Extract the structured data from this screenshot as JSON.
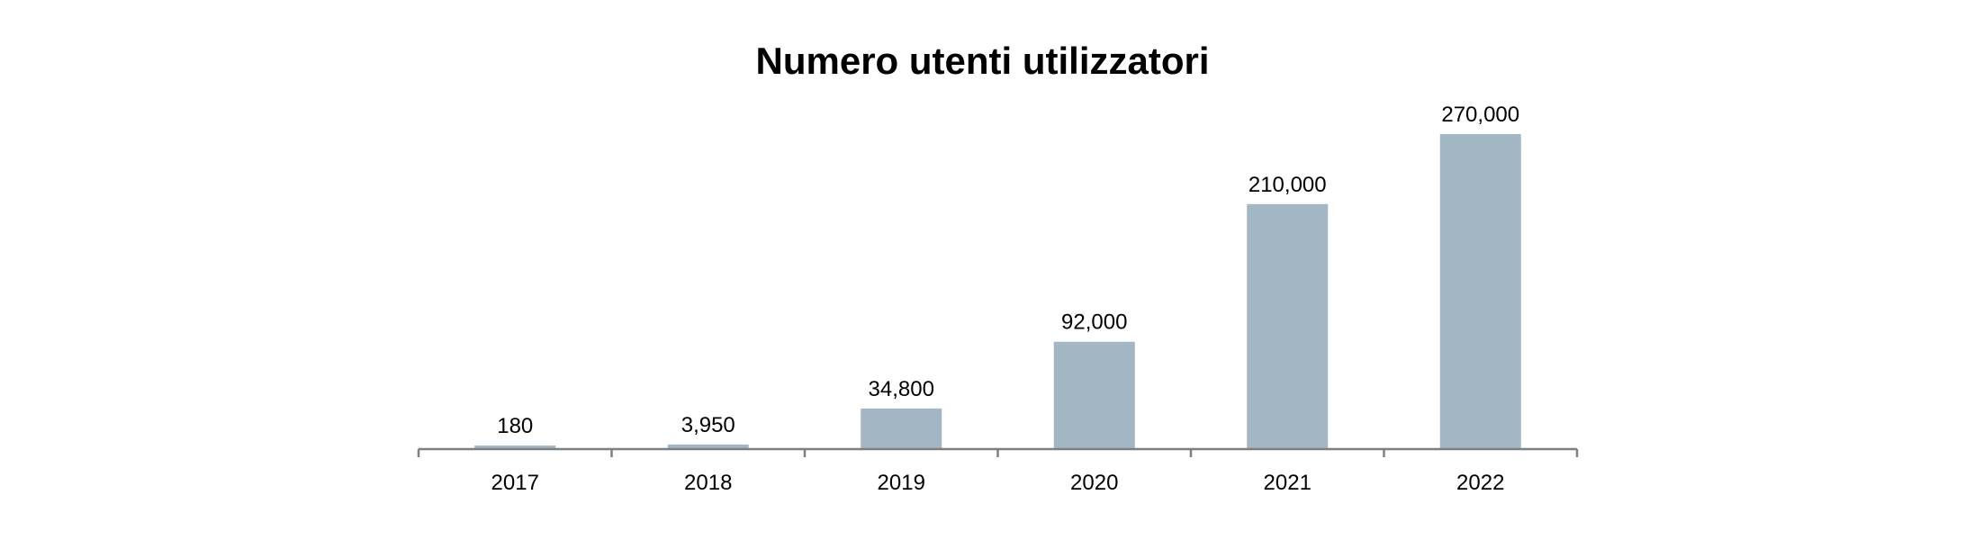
{
  "chart_data": {
    "type": "bar",
    "title": "Numero utenti utilizzatori",
    "categories": [
      "2017",
      "2018",
      "2019",
      "2020",
      "2021",
      "2022"
    ],
    "values": [
      180,
      3950,
      34800,
      92000,
      210000,
      270000
    ],
    "value_labels": [
      "180",
      "3,950",
      "34,800",
      "92,000",
      "210,000",
      "270,000"
    ],
    "xlabel": "",
    "ylabel": "",
    "ylim": [
      0,
      270000
    ],
    "grid": false,
    "legend": "none",
    "bar_color": "#A2B6C4",
    "axis_color": "#7F7F7F"
  }
}
